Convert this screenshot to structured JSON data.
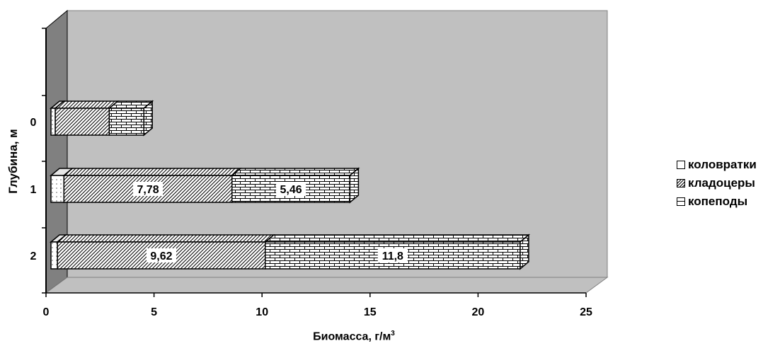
{
  "chart_data": {
    "type": "bar",
    "orientation": "horizontal",
    "stacked": true,
    "three_d": true,
    "categories": [
      "2",
      "1",
      "0"
    ],
    "series": [
      {
        "name": "коловратки",
        "values": [
          0.3,
          0.6,
          0.2
        ],
        "pattern": "blank"
      },
      {
        "name": "кладоцеры",
        "values": [
          9.62,
          7.78,
          2.5
        ],
        "pattern": "diagonal"
      },
      {
        "name": "копеподы",
        "values": [
          11.8,
          5.46,
          1.6
        ],
        "pattern": "brick"
      }
    ],
    "data_labels": [
      {
        "category": "2",
        "series": "кладоцеры",
        "text": "9,62"
      },
      {
        "category": "2",
        "series": "копеподы",
        "text": "11,8"
      },
      {
        "category": "1",
        "series": "кладоцеры",
        "text": "7,78"
      },
      {
        "category": "1",
        "series": "копеподы",
        "text": "5,46"
      }
    ],
    "xlim": [
      0,
      25
    ],
    "x_ticks": [
      "0",
      "5",
      "10",
      "15",
      "20",
      "25"
    ],
    "xlabel_prefix": "Биомасса, г/м",
    "xlabel_sup": "3",
    "ylabel": "Глубина, м",
    "y_ticks": [
      "2",
      "1",
      "0"
    ],
    "legend_position": "right",
    "background": "#c0c0c0"
  }
}
